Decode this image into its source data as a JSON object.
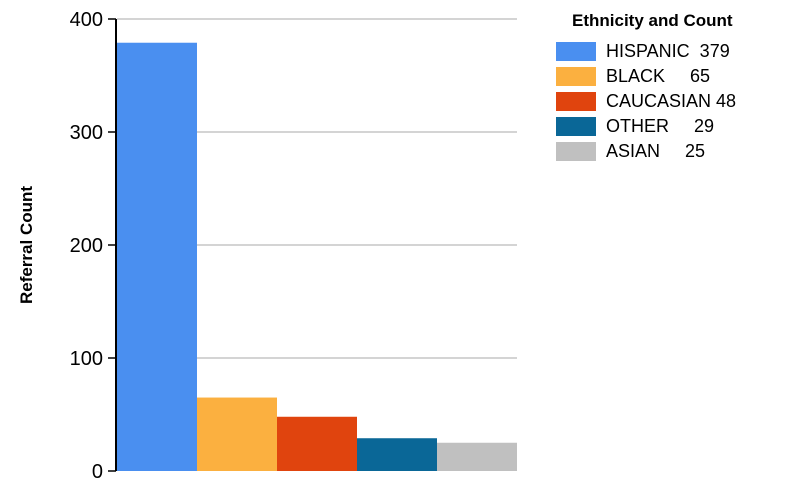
{
  "chart_data": {
    "type": "bar",
    "categories": [
      "HISPANIC",
      "BLACK",
      "CAUCASIAN",
      "OTHER",
      "ASIAN"
    ],
    "values": [
      379,
      65,
      48,
      29,
      25
    ],
    "colors": [
      "#4a8ff0",
      "#fbb040",
      "#e0440e",
      "#0a6797",
      "#c0c0c0"
    ],
    "ylabel": "Referral Count",
    "ylim": [
      0,
      400
    ],
    "yticks": [
      0,
      100,
      200,
      300,
      400
    ],
    "grid": true,
    "legend": {
      "title": "Ethnicity and Count",
      "placement": "right",
      "entries": [
        "HISPANIC  379",
        "BLACK     65",
        "CAUCASIAN 48",
        "OTHER     29",
        "ASIAN     25"
      ]
    }
  }
}
